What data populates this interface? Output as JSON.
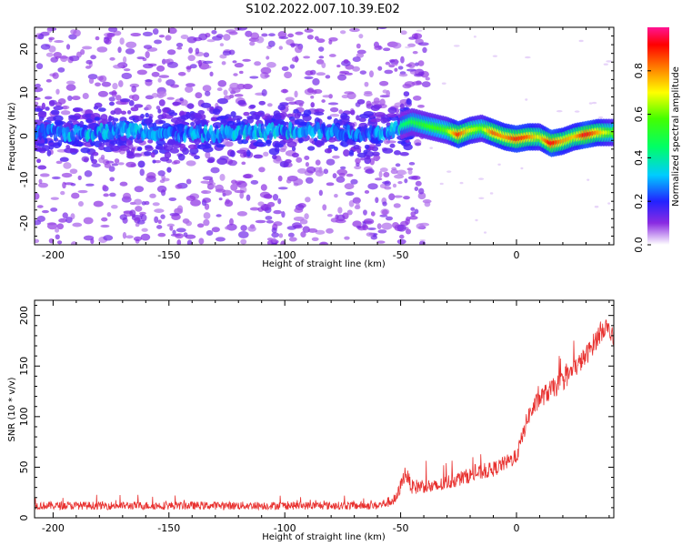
{
  "title": "S102.2022.007.10.39.E02",
  "chart_data": [
    {
      "type": "heatmap",
      "xlabel": "Height of straight line (km)",
      "ylabel": "Frequency (Hz)",
      "xlim": [
        -208,
        42
      ],
      "ylim": [
        -25,
        25
      ],
      "xticks": [
        -200,
        -150,
        -100,
        -50,
        0
      ],
      "yticks": [
        -20,
        -10,
        0,
        10,
        20
      ],
      "colorbar": {
        "label": "Normalized spectral amplitude",
        "range": [
          0,
          1
        ],
        "ticks": [
          "0.0",
          "0.2",
          "0.4",
          "0.6",
          "0.8"
        ],
        "colormap": "rainbow (purple to red)"
      },
      "ridge": {
        "description": "frequency (Hz) of the strongest energy vs height (km)",
        "x": [
          -208,
          -190,
          -170,
          -150,
          -130,
          -110,
          -90,
          -70,
          -55,
          -45,
          -38,
          -30,
          -25,
          -20,
          -15,
          -10,
          -5,
          0,
          5,
          10,
          15,
          20,
          25,
          30,
          35,
          42
        ],
        "y": [
          1,
          0.5,
          1.5,
          0.5,
          0.5,
          1,
          1.5,
          0.5,
          1,
          3,
          2,
          1,
          0,
          1,
          1.5,
          0.5,
          -0.5,
          -1,
          -0.5,
          -0.5,
          -2,
          -1.5,
          -0.5,
          0,
          0.5,
          0.5
        ],
        "peak_amplitude": [
          0.3,
          0.35,
          0.35,
          0.3,
          0.35,
          0.35,
          0.35,
          0.3,
          0.35,
          0.5,
          0.55,
          0.6,
          0.9,
          0.7,
          0.6,
          0.85,
          0.8,
          0.9,
          0.85,
          0.7,
          0.95,
          0.8,
          0.75,
          0.95,
          0.8,
          0.6
        ]
      }
    },
    {
      "type": "line",
      "xlabel": "Height of straight line (km)",
      "ylabel": "SNR (10 * v/v)",
      "xlim": [
        -208,
        42
      ],
      "ylim": [
        0,
        215
      ],
      "xticks": [
        -200,
        -150,
        -100,
        -50,
        0
      ],
      "yticks": [
        0,
        50,
        100,
        150,
        200
      ],
      "series": [
        {
          "color": "#e8312f",
          "x": [
            -208,
            -150,
            -100,
            -60,
            -52,
            -48,
            -45,
            -40,
            -35,
            -30,
            -20,
            -10,
            0,
            5,
            10,
            20,
            30,
            38,
            42
          ],
          "y": [
            12,
            12,
            12,
            12,
            18,
            45,
            30,
            32,
            30,
            35,
            42,
            48,
            60,
            100,
            118,
            135,
            160,
            190,
            175
          ],
          "noise": [
            8,
            8,
            8,
            8,
            12,
            15,
            15,
            15,
            15,
            15,
            15,
            15,
            15,
            18,
            20,
            20,
            20,
            22,
            22
          ]
        }
      ]
    }
  ]
}
